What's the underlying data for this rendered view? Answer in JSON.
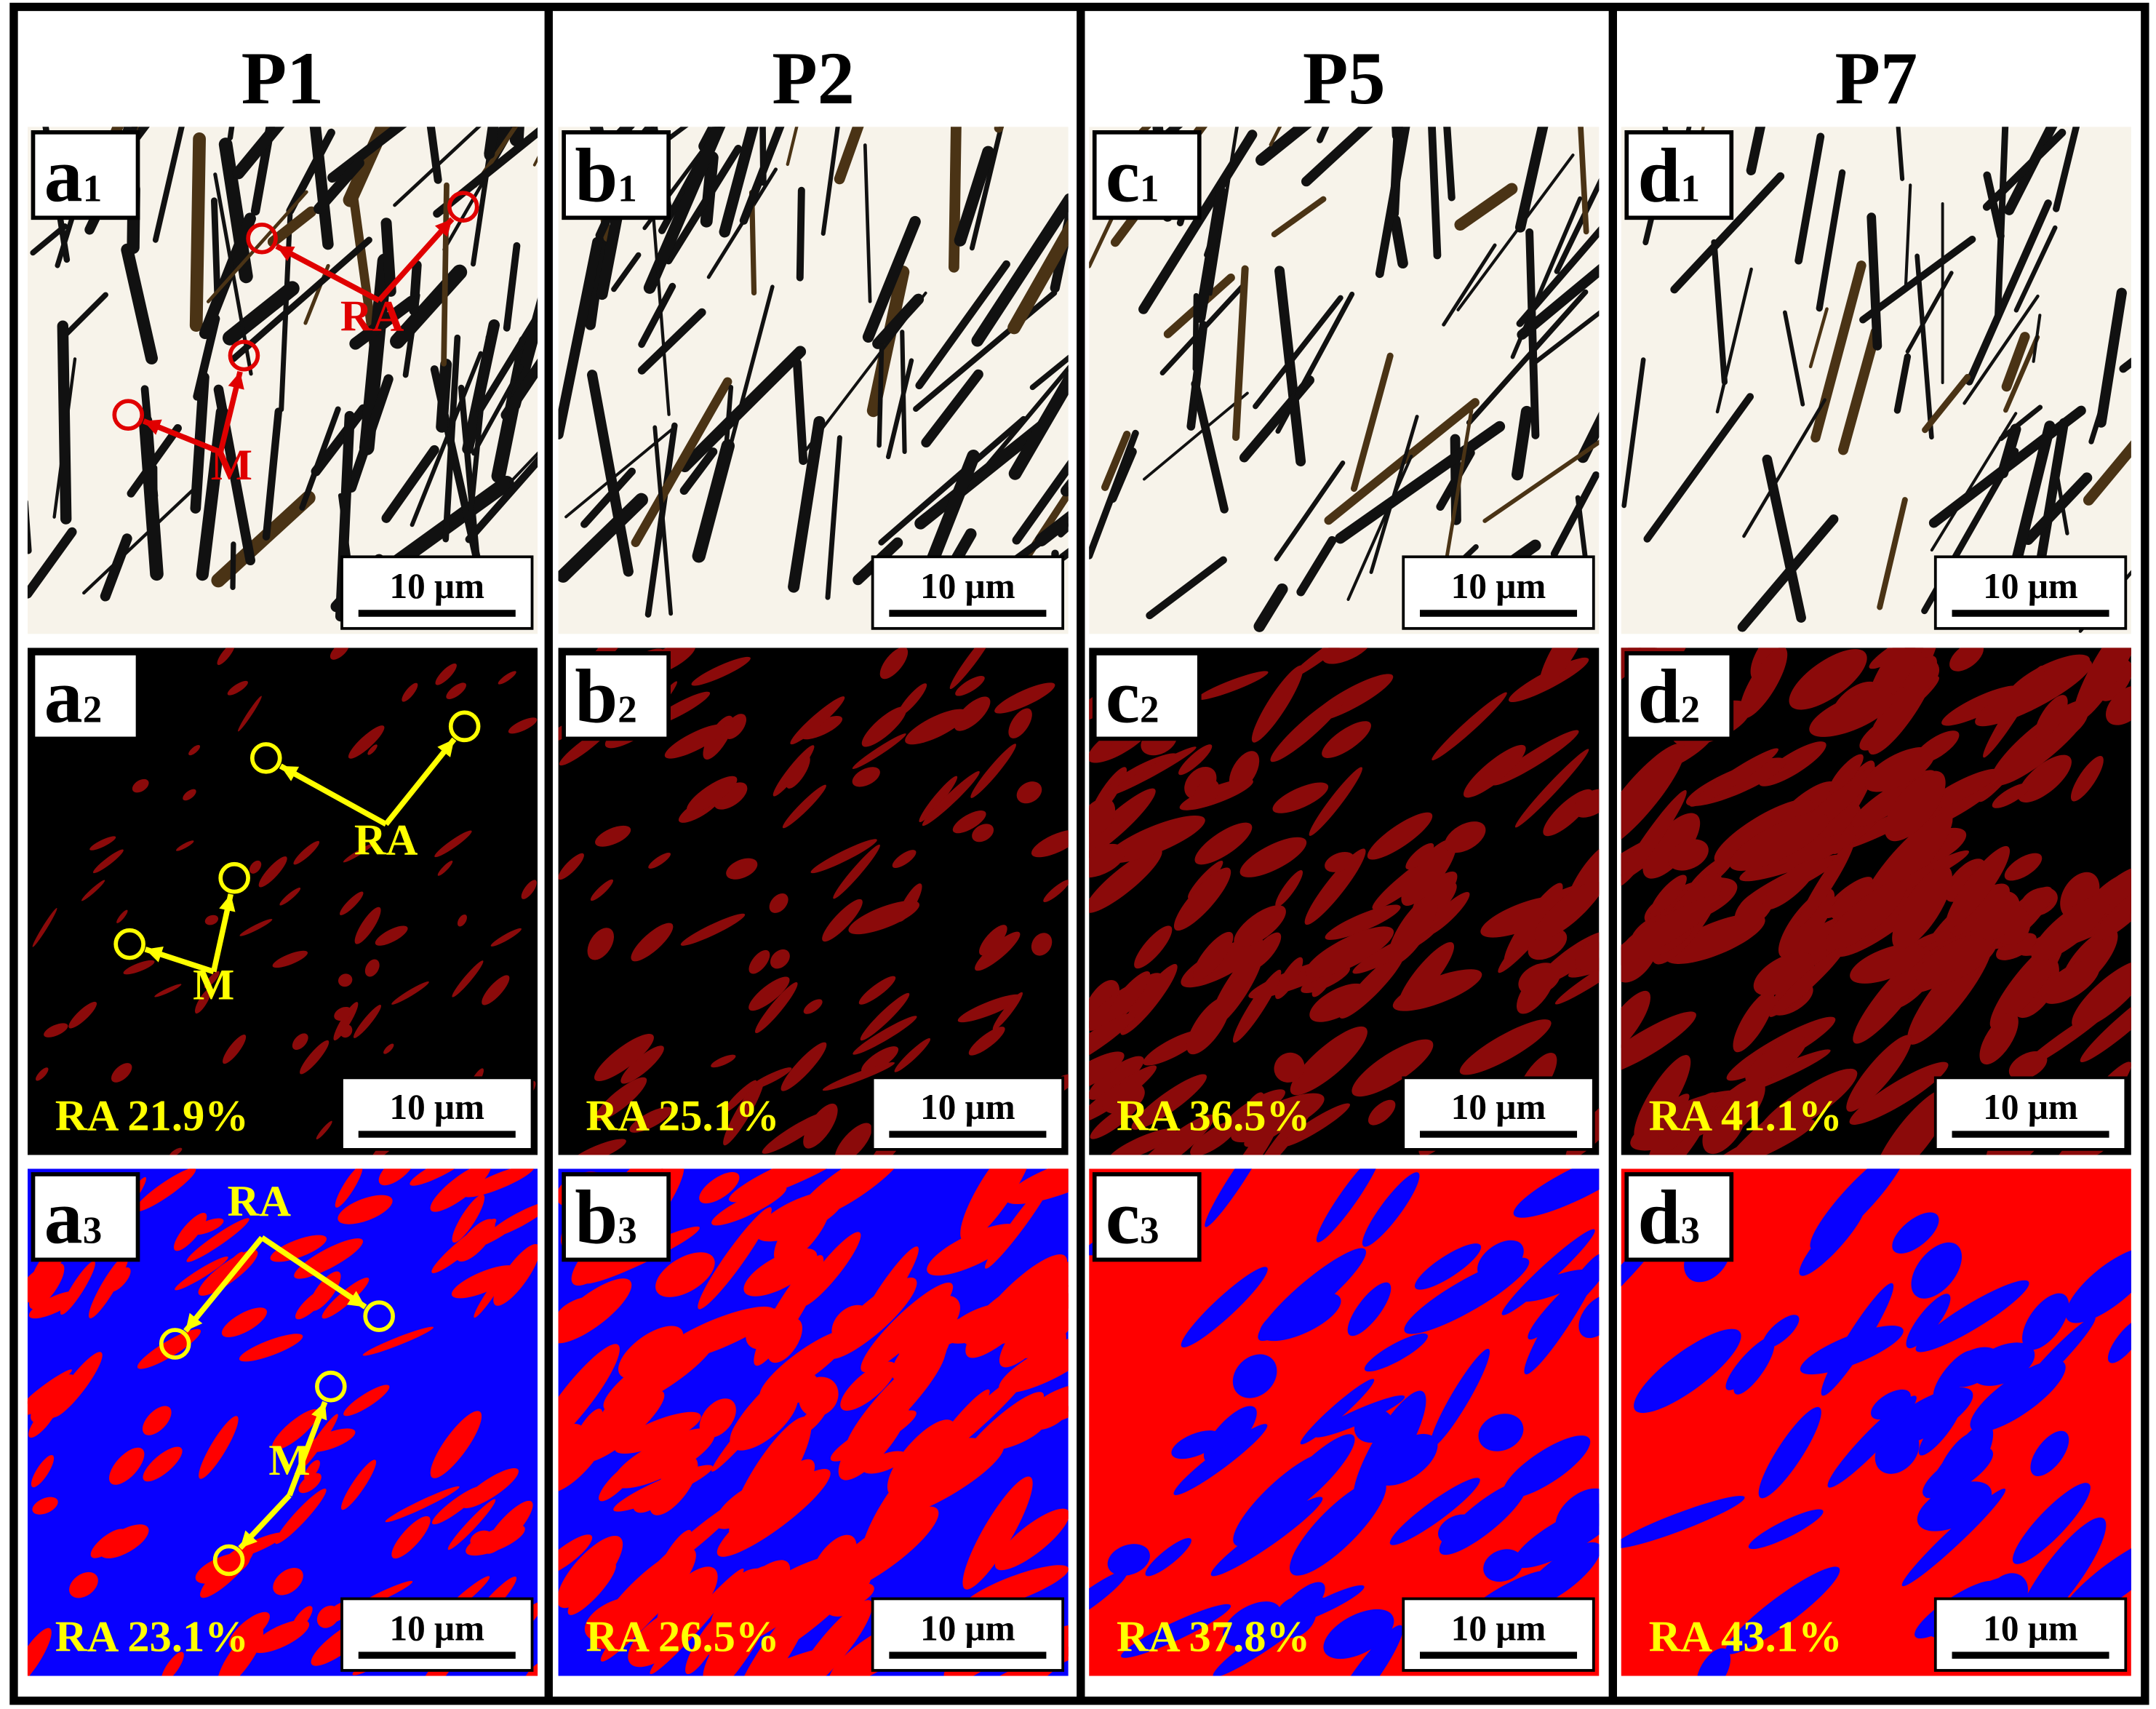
{
  "columns": [
    {
      "header": "P1",
      "panels": [
        {
          "letter": "a",
          "index": "1",
          "scale_bar": "10 μm",
          "annotations": [
            "RA",
            "M"
          ]
        },
        {
          "letter": "a",
          "index": "2",
          "scale_bar": "10 μm",
          "fraction": "RA 21.9%",
          "annotations": [
            "RA",
            "M"
          ]
        },
        {
          "letter": "a",
          "index": "3",
          "scale_bar": "10 μm",
          "fraction": "RA 23.1%",
          "annotations": [
            "RA",
            "M"
          ]
        }
      ]
    },
    {
      "header": "P2",
      "panels": [
        {
          "letter": "b",
          "index": "1",
          "scale_bar": "10 μm"
        },
        {
          "letter": "b",
          "index": "2",
          "scale_bar": "10 μm",
          "fraction": "RA 25.1%"
        },
        {
          "letter": "b",
          "index": "3",
          "scale_bar": "10 μm",
          "fraction": "RA 26.5%"
        }
      ]
    },
    {
      "header": "P5",
      "panels": [
        {
          "letter": "c",
          "index": "1",
          "scale_bar": "10 μm"
        },
        {
          "letter": "c",
          "index": "2",
          "scale_bar": "10 μm",
          "fraction": "RA 36.5%"
        },
        {
          "letter": "c",
          "index": "3",
          "scale_bar": "10 μm",
          "fraction": "RA 37.8%"
        }
      ]
    },
    {
      "header": "P7",
      "panels": [
        {
          "letter": "d",
          "index": "1",
          "scale_bar": "10 μm"
        },
        {
          "letter": "d",
          "index": "2",
          "scale_bar": "10 μm",
          "fraction": "RA 41.1%"
        },
        {
          "letter": "d",
          "index": "3",
          "scale_bar": "10 μm",
          "fraction": "RA 43.1%"
        }
      ]
    }
  ]
}
